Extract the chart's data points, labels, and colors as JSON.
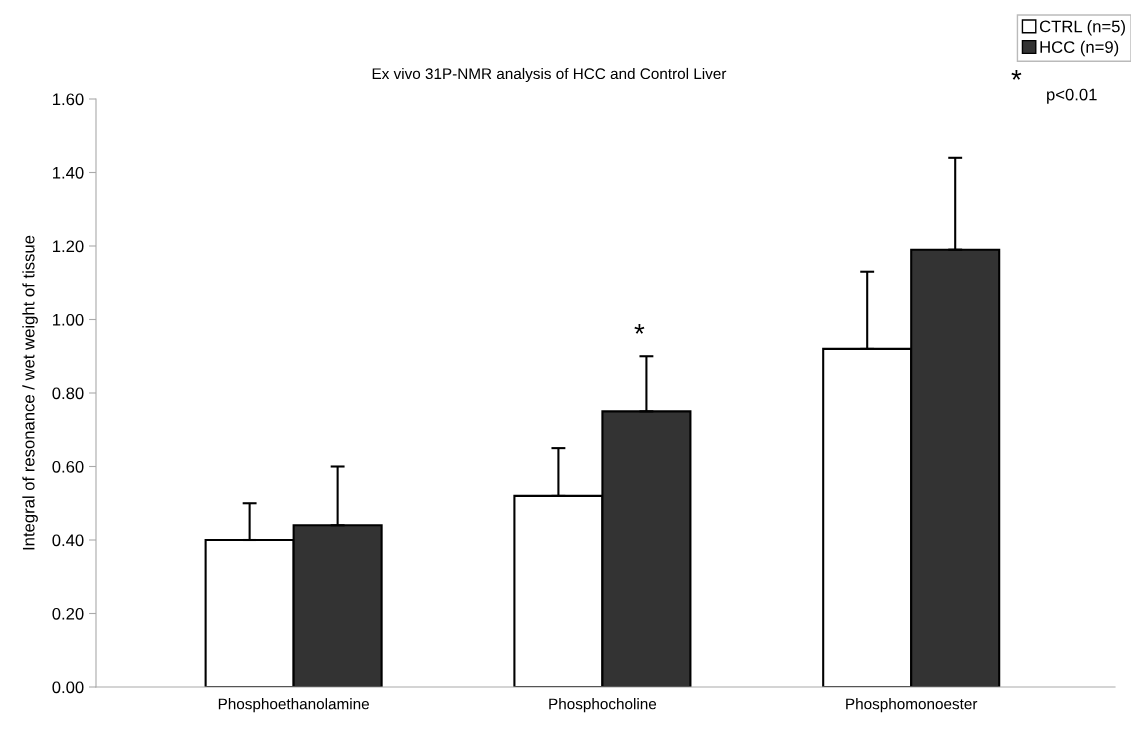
{
  "chart_data": {
    "type": "bar",
    "title": "Ex vivo 31P-NMR analysis of HCC and Control Liver",
    "ylabel": "Integral of resonance / wet weight of tissue",
    "categories": [
      "Phosphoethanolamine",
      "Phosphocholine",
      "Phosphomonoester"
    ],
    "series": [
      {
        "name": "CTRL (n=5)",
        "color": "#ffffff",
        "values": [
          0.4,
          0.52,
          0.92
        ],
        "errors": [
          [
            0.4,
            0.5
          ],
          [
            0.52,
            0.65
          ],
          [
            0.92,
            1.13
          ]
        ]
      },
      {
        "name": "HCC (n=9)",
        "color": "#333333",
        "values": [
          0.44,
          0.75,
          1.19
        ],
        "errors": [
          [
            0.44,
            0.6
          ],
          [
            0.75,
            0.9
          ],
          [
            1.19,
            1.44
          ]
        ]
      }
    ],
    "ylim": [
      0,
      1.6
    ],
    "yticks": [
      {
        "value": 0,
        "label": "0.00"
      },
      {
        "value": 0.2,
        "label": "0.20"
      },
      {
        "value": 0.4,
        "label": "0.40"
      },
      {
        "value": 0.6,
        "label": "0.60"
      },
      {
        "value": 0.8,
        "label": "0.80"
      },
      {
        "value": 1.0,
        "label": "1.00"
      },
      {
        "value": 1.2,
        "label": "1.20"
      },
      {
        "value": 1.4,
        "label": "1.40"
      },
      {
        "value": 1.6,
        "label": "1.60"
      }
    ],
    "grid": false,
    "legend": "top right",
    "annotations": [
      "*",
      "*",
      "p<0.01"
    ]
  }
}
